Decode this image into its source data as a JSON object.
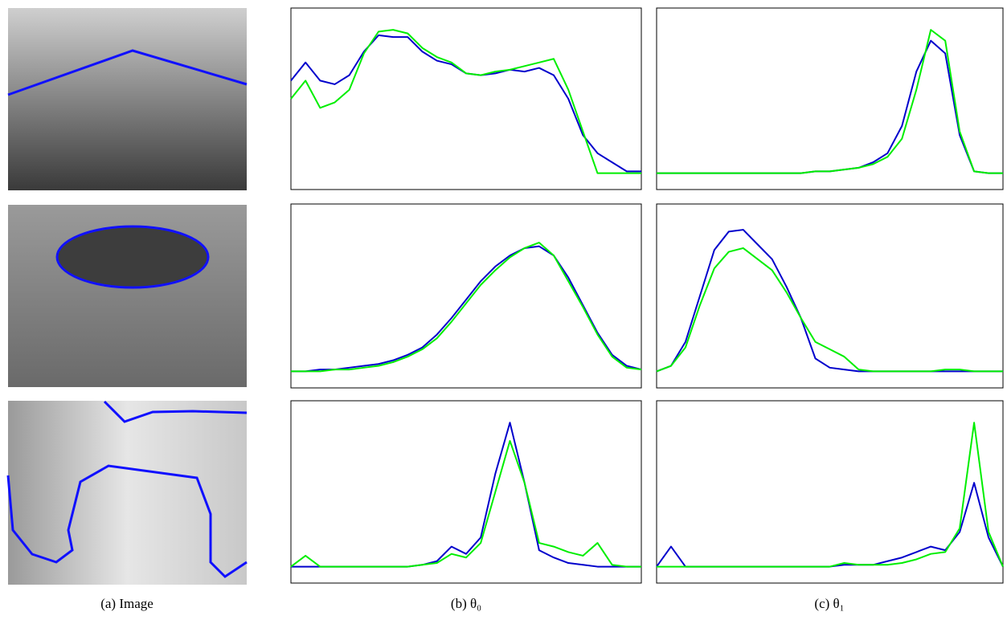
{
  "captions": [
    "(a) Image",
    "(b) θ₀",
    "(c) θ₁"
  ],
  "chart_data": [
    {
      "type": "line",
      "x": [
        0,
        1,
        2,
        3,
        4,
        5,
        6,
        7,
        8,
        9,
        10,
        11,
        12,
        13,
        14,
        15,
        16,
        17,
        18,
        19,
        20,
        21,
        22,
        23,
        24
      ],
      "xlim": [
        0,
        24
      ],
      "ylim": [
        0,
        100
      ],
      "series": [
        {
          "color": "#0000cc",
          "values": [
            60,
            70,
            60,
            58,
            63,
            76,
            85,
            84,
            84,
            76,
            71,
            69,
            64,
            63,
            64,
            66,
            65,
            67,
            63,
            50,
            30,
            20,
            15,
            10,
            10
          ]
        },
        {
          "color": "#00ee00",
          "values": [
            50,
            60,
            45,
            48,
            55,
            75,
            87,
            88,
            86,
            78,
            73,
            70,
            64,
            63,
            65,
            66,
            68,
            70,
            72,
            55,
            32,
            9,
            9,
            9,
            9
          ]
        }
      ]
    },
    {
      "type": "line",
      "x": [
        0,
        1,
        2,
        3,
        4,
        5,
        6,
        7,
        8,
        9,
        10,
        11,
        12,
        13,
        14,
        15,
        16,
        17,
        18,
        19,
        20,
        21,
        22,
        23,
        24
      ],
      "xlim": [
        0,
        24
      ],
      "ylim": [
        0,
        100
      ],
      "series": [
        {
          "color": "#0000cc",
          "values": [
            9,
            9,
            9,
            9,
            9,
            9,
            9,
            9,
            9,
            9,
            9,
            10,
            10,
            11,
            12,
            15,
            20,
            35,
            65,
            82,
            75,
            30,
            10,
            9,
            9
          ]
        },
        {
          "color": "#00ee00",
          "values": [
            9,
            9,
            9,
            9,
            9,
            9,
            9,
            9,
            9,
            9,
            9,
            10,
            10,
            11,
            12,
            14,
            18,
            28,
            55,
            88,
            82,
            32,
            10,
            9,
            9
          ]
        }
      ]
    },
    {
      "type": "line",
      "x": [
        0,
        1,
        2,
        3,
        4,
        5,
        6,
        7,
        8,
        9,
        10,
        11,
        12,
        13,
        14,
        15,
        16,
        17,
        18,
        19,
        20,
        21,
        22,
        23,
        24
      ],
      "xlim": [
        0,
        24
      ],
      "ylim": [
        0,
        100
      ],
      "series": [
        {
          "color": "#0000cc",
          "values": [
            9,
            9,
            10,
            10,
            11,
            12,
            13,
            15,
            18,
            22,
            29,
            38,
            48,
            58,
            66,
            72,
            76,
            77,
            72,
            60,
            45,
            30,
            18,
            12,
            10
          ]
        },
        {
          "color": "#00ee00",
          "values": [
            9,
            9,
            9,
            10,
            10,
            11,
            12,
            14,
            17,
            21,
            27,
            36,
            46,
            56,
            64,
            71,
            76,
            79,
            72,
            58,
            44,
            29,
            17,
            11,
            10
          ]
        }
      ]
    },
    {
      "type": "line",
      "x": [
        0,
        1,
        2,
        3,
        4,
        5,
        6,
        7,
        8,
        9,
        10,
        11,
        12,
        13,
        14,
        15,
        16,
        17,
        18,
        19,
        20,
        21,
        22,
        23,
        24
      ],
      "xlim": [
        0,
        24
      ],
      "ylim": [
        0,
        100
      ],
      "series": [
        {
          "color": "#0000cc",
          "values": [
            9,
            12,
            25,
            50,
            75,
            85,
            86,
            78,
            70,
            55,
            38,
            16,
            11,
            10,
            9,
            9,
            9,
            9,
            9,
            9,
            9,
            9,
            9,
            9,
            9
          ]
        },
        {
          "color": "#00ee00",
          "values": [
            9,
            12,
            22,
            45,
            65,
            74,
            76,
            70,
            64,
            52,
            38,
            25,
            21,
            17,
            10,
            9,
            9,
            9,
            9,
            9,
            10,
            10,
            9,
            9,
            9
          ]
        }
      ]
    },
    {
      "type": "line",
      "x": [
        0,
        1,
        2,
        3,
        4,
        5,
        6,
        7,
        8,
        9,
        10,
        11,
        12,
        13,
        14,
        15,
        16,
        17,
        18,
        19,
        20,
        21,
        22,
        23,
        24
      ],
      "xlim": [
        0,
        24
      ],
      "ylim": [
        0,
        100
      ],
      "series": [
        {
          "color": "#0000cc",
          "values": [
            9,
            9,
            9,
            9,
            9,
            9,
            9,
            9,
            9,
            10,
            12,
            20,
            16,
            25,
            60,
            88,
            55,
            18,
            14,
            11,
            10,
            9,
            9,
            9,
            9
          ]
        },
        {
          "color": "#00ee00",
          "values": [
            9,
            15,
            9,
            9,
            9,
            9,
            9,
            9,
            9,
            10,
            11,
            16,
            14,
            22,
            50,
            78,
            55,
            22,
            20,
            17,
            15,
            22,
            10,
            9,
            9
          ]
        }
      ]
    },
    {
      "type": "line",
      "x": [
        0,
        1,
        2,
        3,
        4,
        5,
        6,
        7,
        8,
        9,
        10,
        11,
        12,
        13,
        14,
        15,
        16,
        17,
        18,
        19,
        20,
        21,
        22,
        23,
        24
      ],
      "xlim": [
        0,
        24
      ],
      "ylim": [
        0,
        100
      ],
      "series": [
        {
          "color": "#0000cc",
          "values": [
            9,
            20,
            9,
            9,
            9,
            9,
            9,
            9,
            9,
            9,
            9,
            9,
            9,
            10,
            10,
            10,
            12,
            14,
            17,
            20,
            18,
            28,
            55,
            25,
            9
          ]
        },
        {
          "color": "#00ee00",
          "values": [
            9,
            9,
            9,
            9,
            9,
            9,
            9,
            9,
            9,
            9,
            9,
            9,
            9,
            11,
            10,
            10,
            10,
            11,
            13,
            16,
            17,
            30,
            88,
            28,
            9
          ]
        }
      ]
    }
  ]
}
